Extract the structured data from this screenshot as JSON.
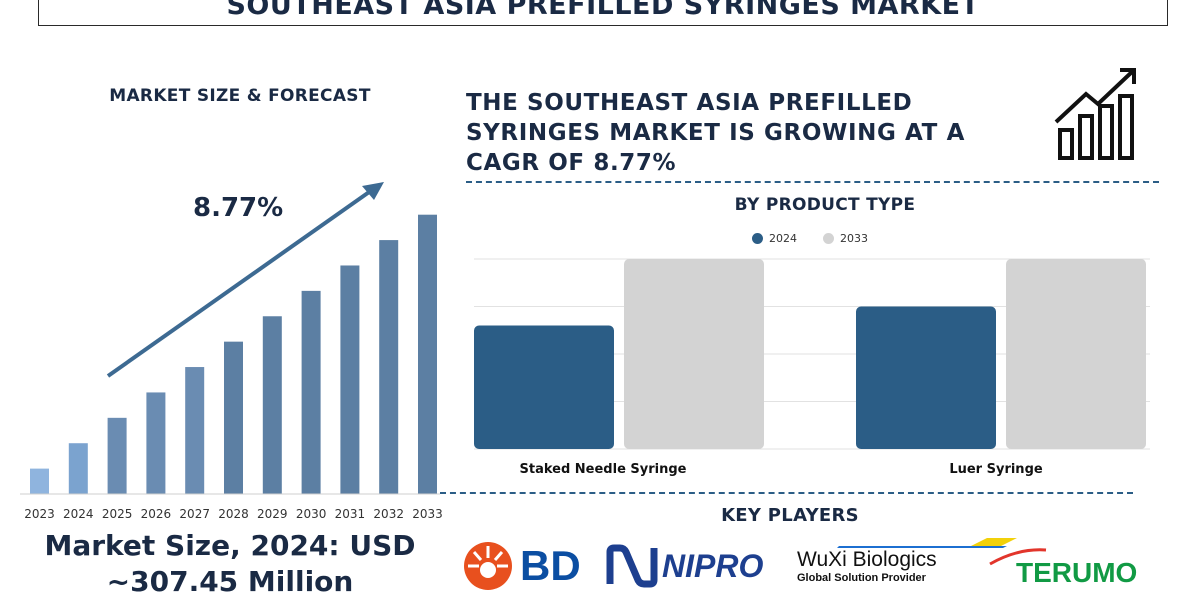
{
  "title": "SOUTHEAST ASIA PREFILLED SYRINGES MARKET",
  "market_size_heading": "MARKET SIZE & FORECAST",
  "cagr_label": "8.77%",
  "market_size_line1": "Market Size, 2024: USD",
  "market_size_line2": "~307.45 Million",
  "headline": "THE SOUTHEAST ASIA PREFILLED SYRINGES MARKET IS GROWING AT A CAGR OF 8.77%",
  "product_heading": "BY PRODUCT TYPE",
  "key_players_heading": "KEY PLAYERS",
  "logos": {
    "bd": "BD",
    "nipro": "NIPRO",
    "wuxi_name": "WuXi Biologics",
    "wuxi_tagline": "Global Solution Provider",
    "terumo": "TERUMO"
  },
  "colors": {
    "navy": "#1a2a44",
    "bar_first": "#8fb4de",
    "bar_mid": "#6a8cb2",
    "bar_late": "#5c7fa3",
    "series_2024": "#2b5d86",
    "series_2033": "#d3d3d3",
    "divider": "#2b5d86"
  },
  "chart_data": [
    {
      "type": "bar",
      "categories": [
        "2023",
        "2024",
        "2025",
        "2026",
        "2027",
        "2028",
        "2029",
        "2030",
        "2031",
        "2032",
        "2033"
      ],
      "values": [
        1.0,
        2.0,
        3.0,
        4.0,
        5.0,
        6.0,
        7.0,
        8.0,
        9.0,
        10.0,
        11.0
      ],
      "annotation": "8.77%",
      "ylim": [
        0,
        11.5
      ],
      "grid": false
    },
    {
      "type": "bar",
      "categories": [
        "Staked Needle Syringe",
        "Luer Syringe"
      ],
      "series": [
        {
          "name": "2024",
          "values": [
            65,
            75
          ]
        },
        {
          "name": "2033",
          "values": [
            100,
            100
          ]
        }
      ],
      "ylim": [
        0,
        100
      ],
      "grid": true,
      "legend": "top-center"
    }
  ]
}
